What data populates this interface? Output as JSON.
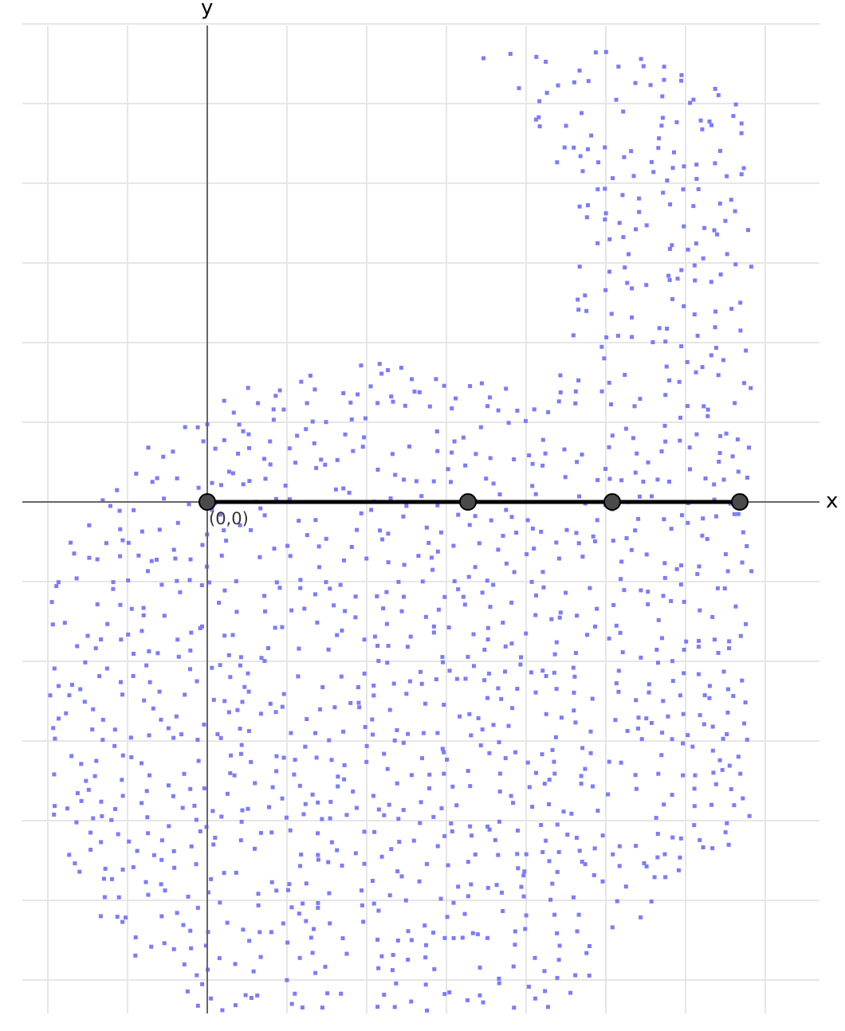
{
  "axes": {
    "x_label": "x",
    "y_label": "y",
    "x_range": [
      -2.3,
      7.7
    ],
    "y_range": [
      -6.4,
      6.0
    ],
    "grid_step": 1,
    "axis_color": "#666666",
    "grid_color": "#e6e6e6"
  },
  "segment": {
    "from": [
      0,
      0
    ],
    "to": [
      6.68,
      0
    ],
    "color": "#000000"
  },
  "points": [
    {
      "x": 0,
      "y": 0,
      "label": "(0,0)"
    },
    {
      "x": 3.27,
      "y": 0,
      "label": ""
    },
    {
      "x": 5.08,
      "y": 0,
      "label": ""
    },
    {
      "x": 6.68,
      "y": 0,
      "label": ""
    }
  ],
  "point_color": "#4a4a4a",
  "point_cloud": {
    "color": "#7b7bff",
    "description_shape": "crescent region of scattered dots",
    "region": {
      "big_circle": {
        "cx": 2.1,
        "cy": -2.6,
        "r": 4.35
      },
      "outer_circle": {
        "cx": 4.0,
        "cy": 0.4,
        "r": 5.4
      },
      "cut_circle": {
        "cx": 1.15,
        "cy": 2.9,
        "r": 3.5
      }
    },
    "spacing": 0.12
  }
}
